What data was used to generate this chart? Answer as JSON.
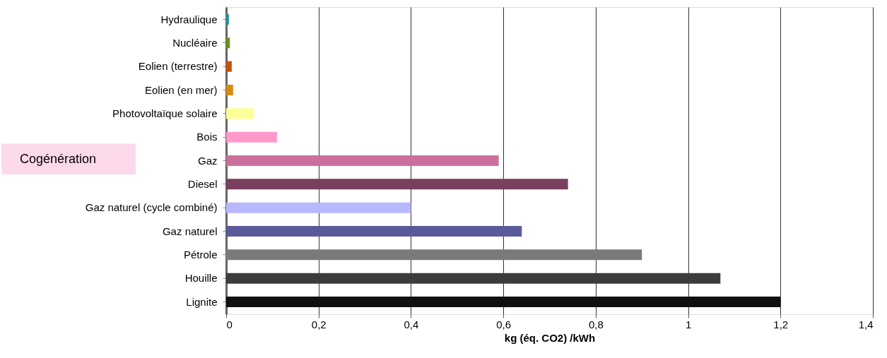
{
  "chart_data": {
    "type": "bar",
    "orientation": "horizontal",
    "xlabel": "kg (éq. CO2) /kWh",
    "categories": [
      "Hydraulique",
      "Nucléaire",
      "Eolien (terrestre)",
      "Eolien (en mer)",
      "Photovoltaïque solaire",
      "Bois",
      "Gaz",
      "Diesel",
      "Gaz naturel (cycle combiné)",
      "Gaz naturel ",
      "Pétrole",
      "Houille",
      "Lignite"
    ],
    "values": [
      0.006,
      0.008,
      0.012,
      0.015,
      0.06,
      0.11,
      0.59,
      0.74,
      0.4,
      0.64,
      0.9,
      1.07,
      1.2
    ],
    "colors": [
      "#2a8fa0",
      "#6b8e1a",
      "#c8500a",
      "#d98a10",
      "#ffff99",
      "#ff99cc",
      "#cc6f9c",
      "#7a3f5e",
      "#b8b8ff",
      "#5a5a9a",
      "#7a7a7a",
      "#3c3c3c",
      "#101010"
    ],
    "xlim": [
      0,
      1.4
    ],
    "xticks": [
      0,
      {
        "value": 0.2,
        "label": "0,2"
      },
      {
        "value": 0.4,
        "label": "0,4"
      },
      {
        "value": 0.6,
        "label": "0,6"
      },
      {
        "value": 0.8,
        "label": "0,8"
      },
      1,
      {
        "value": 1.2,
        "label": "1,2"
      },
      {
        "value": 1.4,
        "label": "1,4"
      }
    ],
    "grid": "x",
    "annotations": [
      "Cogénération"
    ]
  }
}
